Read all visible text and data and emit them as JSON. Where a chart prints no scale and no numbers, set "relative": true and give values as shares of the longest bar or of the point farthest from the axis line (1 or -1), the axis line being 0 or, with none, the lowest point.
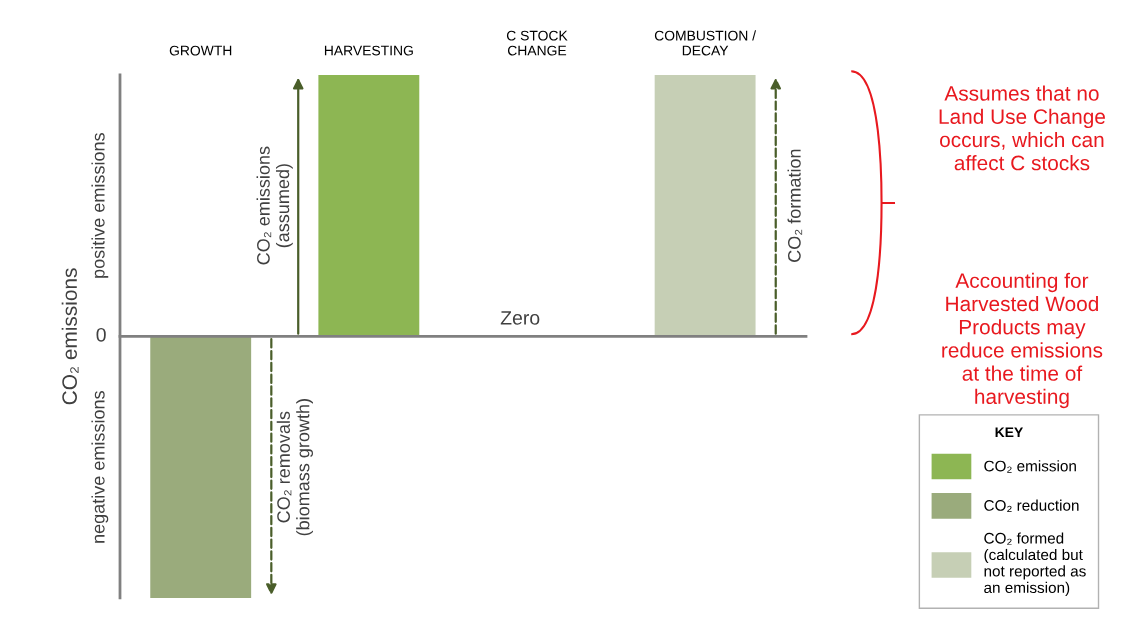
{
  "chart_data": {
    "type": "bar",
    "relative": true,
    "categories": [
      "GROWTH",
      "HARVESTING",
      "C STOCK\nCHANGE",
      "COMBUSTION /\nDECAY"
    ],
    "series": [
      {
        "name": "CO₂ emission",
        "color": "#8db653",
        "values": [
          null,
          1,
          null,
          null
        ],
        "line_style": "solid"
      },
      {
        "name": "CO₂ reduction",
        "color": "#9aab7c",
        "values": [
          -1,
          null,
          null,
          null
        ],
        "line_style": "dashed"
      },
      {
        "name": "CO₂ formed\n(calculated but\nnot reported as\nan emission)",
        "color": "#c6cfb5",
        "values": [
          null,
          null,
          null,
          1
        ],
        "line_style": "dashed"
      }
    ],
    "ylabel": "CO₂ emissions",
    "legend": "bottom right",
    "legend_title": "KEY",
    "annotations": [
      "0",
      "positive emissions",
      "negative emissions",
      "CO₂ removals\n(biomass growth)",
      "CO₂ emissions\n(assumed)",
      "Zero",
      "CO₂ formation",
      "Assumes that no\nLand Use Change\noccurs, which can\naffect C stocks",
      "Accounting for\nHarvested Wood\nProducts may\nreduce emissions\nat the time of\nharvesting"
    ]
  }
}
